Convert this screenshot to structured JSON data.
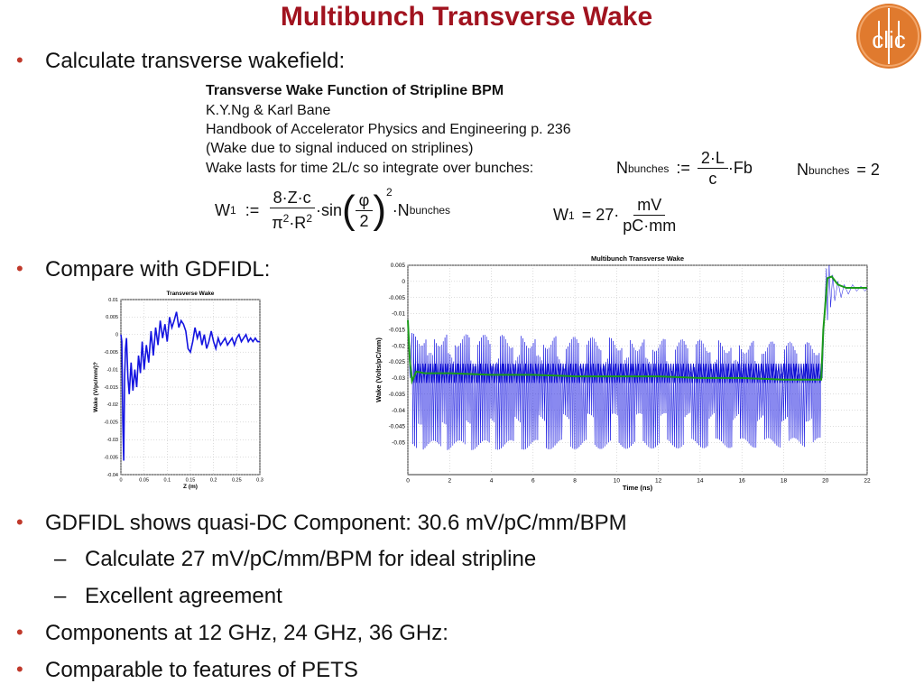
{
  "title": "Multibunch Transverse Wake",
  "logo": {
    "text": "clic",
    "color": "#e07a2e"
  },
  "bullets": {
    "b1": "Calculate transverse wakefield:",
    "b2": "Compare with GDFIDL:",
    "b3": "GDFIDL shows quasi-DC Component: 30.6 mV/pC/mm/BPM",
    "b3_sub1": "Calculate 27 mV/pC/mm/BPM for ideal stripline",
    "b3_sub2": "Excellent agreement",
    "b4": "Components at 12 GHz, 24 GHz, 36 GHz:",
    "b5": "Comparable to features of PETS"
  },
  "mathcad": {
    "line1": "Transverse Wake Function of Stripline BPM",
    "line2": "K.Y.Ng & Karl Bane",
    "line3": "Handbook of Accelerator Physics and Engineering p. 236",
    "line4": "(Wake due to signal induced on striplines)",
    "line5": "Wake lasts for time 2L/c so integrate over bunches:",
    "nb_def_lhs": "N",
    "nb_def_sub": "bunches",
    "nb_def_op": ":=",
    "nb_def_num": "2·L",
    "nb_def_den": "c",
    "nb_def_tail": "·Fb",
    "nb_val_lhs": "N",
    "nb_val_sub": "bunches",
    "nb_val_rhs": "= 2",
    "w_lhs": "W",
    "w_sub": "1",
    "w_op": ":=",
    "w_num": "8·Z·c",
    "w_den_a": "π",
    "w_den_b": "·R",
    "w_den_exp": "2",
    "w_sin": "·sin",
    "w_phi": "φ",
    "w_two": "2",
    "w_exp": "2",
    "w_tail": "·N",
    "w_tail_sub": "bunches",
    "w_res_lhs": "W",
    "w_res_sub": "1",
    "w_res_eq": "= 27·",
    "w_res_num": "mV",
    "w_res_den": "pC·mm"
  },
  "chart_data": [
    {
      "type": "line",
      "title": "Transverse Wake",
      "xlabel": "Z (m)",
      "ylabel": "Wake (V/pc/mm/)?",
      "xlim": [
        0,
        0.3
      ],
      "ylim": [
        -0.04,
        0.01
      ],
      "xticks": [
        "0",
        "0.05",
        "0.1",
        "0.15",
        "0.2",
        "0.25",
        "0.3"
      ],
      "yticks": [
        "0.01",
        "0.005",
        "0",
        "-0.005",
        "-0.01",
        "-0.015",
        "-0.02",
        "-0.025",
        "-0.03",
        "-0.035",
        "-0.04"
      ],
      "grid": true,
      "series": [
        {
          "color": "#1414e0",
          "x": [
            0,
            0.002,
            0.004,
            0.006,
            0.008,
            0.01,
            0.012,
            0.015,
            0.018,
            0.022,
            0.026,
            0.03,
            0.034,
            0.038,
            0.042,
            0.046,
            0.05,
            0.055,
            0.06,
            0.065,
            0.07,
            0.075,
            0.08,
            0.085,
            0.09,
            0.095,
            0.1,
            0.105,
            0.11,
            0.115,
            0.12,
            0.125,
            0.13,
            0.135,
            0.14,
            0.145,
            0.15,
            0.155,
            0.16,
            0.165,
            0.17,
            0.175,
            0.18,
            0.185,
            0.19,
            0.195,
            0.2,
            0.205,
            0.21,
            0.215,
            0.22,
            0.225,
            0.23,
            0.235,
            0.24,
            0.245,
            0.25,
            0.255,
            0.26,
            0.265,
            0.27,
            0.275,
            0.28,
            0.285,
            0.29,
            0.295,
            0.3
          ],
          "y": [
            0,
            -0.002,
            -0.025,
            -0.036,
            -0.012,
            -0.004,
            -0.001,
            -0.012,
            -0.017,
            -0.008,
            -0.016,
            -0.01,
            -0.015,
            -0.006,
            -0.011,
            -0.002,
            -0.01,
            -0.003,
            -0.008,
            0.001,
            -0.006,
            0.002,
            -0.003,
            0.004,
            -0.001,
            0.003,
            -0.002,
            0.005,
            0.002,
            0.004,
            0.0065,
            0.002,
            0.004,
            0.003,
            0.001,
            -0.004,
            -0.005,
            -0.002,
            0.002,
            -0.001,
            0.001,
            -0.003,
            0.0,
            -0.004,
            -0.002,
            0.001,
            -0.002,
            -0.004,
            -0.001,
            -0.003,
            -0.002,
            -0.001,
            -0.003,
            -0.002,
            -0.001,
            -0.003,
            -0.001,
            0.0,
            -0.002,
            -0.001,
            0.0,
            -0.002,
            -0.001,
            -0.002,
            -0.001,
            -0.002,
            -0.002
          ]
        }
      ]
    },
    {
      "type": "line",
      "title": "Multibunch Transverse Wake",
      "xlabel": "Time (ns)",
      "ylabel": "Wake (Volts/pC/mm)",
      "xlim": [
        0,
        22
      ],
      "ylim": [
        -0.06,
        0.005
      ],
      "xticks": [
        "0",
        "2",
        "4",
        "6",
        "8",
        "10",
        "12",
        "14",
        "16",
        "18",
        "20",
        "22"
      ],
      "yticks": [
        "0.005",
        "0",
        "-0.005",
        "-0.01",
        "-0.015",
        "-0.02",
        "-0.025",
        "-0.03",
        "-0.035",
        "-0.04",
        "-0.045",
        "-0.05"
      ],
      "grid": true,
      "series": [
        {
          "name_hidden": "blue (raw)",
          "color": "#1414e0",
          "description_hidden": "oscillating between about -0.02 and -0.05 from 0.2 to 19.8 ns, then rising to ~0.005 after 20 ns",
          "x": [
            0,
            0.2,
            19.8,
            20.0,
            20.2,
            20.6,
            21.0,
            21.5,
            22.0
          ],
          "envelope_top": [
            -0.01,
            -0.018,
            -0.02,
            0.003,
            0.005,
            0.0,
            -0.001,
            -0.002,
            -0.002
          ],
          "envelope_bottom": [
            -0.03,
            -0.051,
            -0.05,
            -0.03,
            -0.01,
            -0.006,
            -0.004,
            -0.003,
            -0.003
          ]
        },
        {
          "color": "#1a9a1a",
          "x": [
            0,
            0.1,
            0.2,
            0.4,
            0.8,
            2,
            4,
            6,
            8,
            10,
            12,
            14,
            16,
            18,
            19.8,
            19.9,
            20.1,
            20.3,
            20.6,
            21.0,
            21.5,
            22.0
          ],
          "y": [
            -0.012,
            -0.025,
            -0.031,
            -0.028,
            -0.0285,
            -0.0285,
            -0.029,
            -0.029,
            -0.0295,
            -0.0295,
            -0.0295,
            -0.03,
            -0.03,
            -0.0305,
            -0.0305,
            -0.015,
            0.001,
            0.0015,
            -0.001,
            -0.002,
            -0.002,
            -0.002
          ]
        }
      ]
    }
  ]
}
